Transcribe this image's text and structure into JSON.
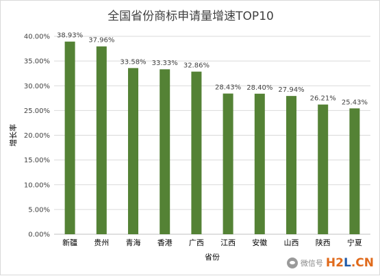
{
  "chart_data": {
    "type": "bar",
    "title": "全国省份商标申请量增速TOP10",
    "xlabel": "省份",
    "ylabel": "增长率",
    "categories": [
      "新疆",
      "贵州",
      "青海",
      "香港",
      "广西",
      "江西",
      "安徽",
      "山西",
      "陕西",
      "宁夏"
    ],
    "values": [
      38.93,
      37.96,
      33.58,
      33.33,
      32.86,
      28.43,
      28.4,
      27.94,
      26.21,
      25.43
    ],
    "value_labels": [
      "38.93%",
      "37.96%",
      "33.58%",
      "33.33%",
      "32.86%",
      "28.43%",
      "28.40%",
      "27.94%",
      "26.21%",
      "25.43%"
    ],
    "yticks": [
      "0.00%",
      "5.00%",
      "10.00%",
      "15.00%",
      "20.00%",
      "25.00%",
      "30.00%",
      "35.00%",
      "40.00%"
    ],
    "ylim": [
      0,
      40
    ],
    "grid": true,
    "legend": "none",
    "bar_color": "#548235"
  },
  "watermark": {
    "text": "微信号",
    "logo_h": "H",
    "logo_2": "2",
    "logo_l": "L",
    "logo_cn": ".CN"
  }
}
